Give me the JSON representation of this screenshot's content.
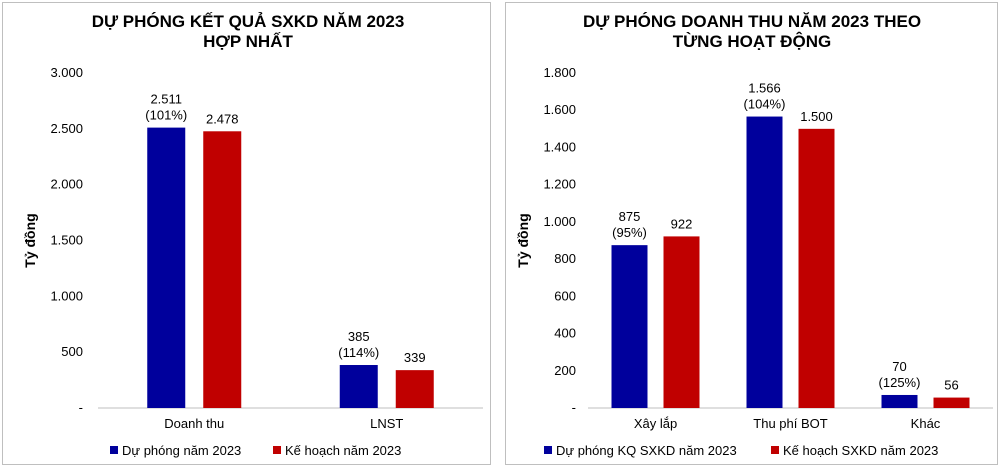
{
  "chart_data": [
    {
      "type": "bar",
      "title_lines": [
        "DỰ PHÓNG KẾT QUẢ SXKD NĂM 2023",
        "HỢP NHẤT"
      ],
      "ylabel": "Tỷ đồng",
      "ylim": [
        0,
        3000
      ],
      "yticks": [
        0,
        500,
        1000,
        1500,
        2000,
        2500,
        3000
      ],
      "ytick_labels": [
        "-",
        "500",
        "1.000",
        "1.500",
        "2.000",
        "2.500",
        "3.000"
      ],
      "categories": [
        "Doanh thu",
        "LNST"
      ],
      "series": [
        {
          "name": "Dự phóng năm 2023",
          "color": "#00009c",
          "values": [
            2511,
            385
          ],
          "labels": [
            "2.511",
            "385"
          ],
          "sublabels": [
            "(101%)",
            "(114%)"
          ]
        },
        {
          "name": "Kế hoạch năm 2023",
          "color": "#c00000",
          "values": [
            2478,
            339
          ],
          "labels": [
            "2.478",
            "339"
          ],
          "sublabels": [
            "",
            ""
          ]
        }
      ],
      "legend": "bottom",
      "grid": false
    },
    {
      "type": "bar",
      "title_lines": [
        "DỰ PHÓNG DOANH THU NĂM 2023 THEO",
        "TỪNG HOẠT ĐỘNG"
      ],
      "ylabel": "Tỷ đồng",
      "ylim": [
        0,
        1800
      ],
      "yticks": [
        0,
        200,
        400,
        600,
        800,
        1000,
        1200,
        1400,
        1600,
        1800
      ],
      "ytick_labels": [
        "-",
        "200",
        "400",
        "600",
        "800",
        "1.000",
        "1.200",
        "1.400",
        "1.600",
        "1.800"
      ],
      "categories": [
        "Xây lắp",
        "Thu phí BOT",
        "Khác"
      ],
      "series": [
        {
          "name": "Dự phóng KQ SXKD năm 2023",
          "color": "#00009c",
          "values": [
            875,
            1566,
            70
          ],
          "labels": [
            "875",
            "1.566",
            "70"
          ],
          "sublabels": [
            "(95%)",
            "(104%)",
            "(125%)"
          ]
        },
        {
          "name": "Kế hoạch SXKD năm 2023",
          "color": "#c00000",
          "values": [
            922,
            1500,
            56
          ],
          "labels": [
            "922",
            "1.500",
            "56"
          ],
          "sublabels": [
            "",
            "",
            ""
          ]
        }
      ],
      "legend": "bottom",
      "grid": false
    }
  ]
}
